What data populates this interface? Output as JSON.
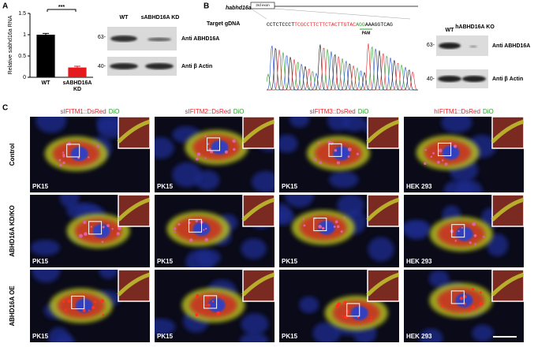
{
  "chart_data": {
    "type": "bar",
    "panel": "A",
    "y_label": "Relative sabhd16a RNA",
    "categories": [
      "WT",
      "sABHD16A KD"
    ],
    "values": [
      1.0,
      0.23
    ],
    "errors": [
      0.03,
      0.03
    ],
    "colors": [
      "#000000",
      "#e41a1c"
    ],
    "ylim": [
      0,
      1.5
    ],
    "yticks": [
      0,
      0.5,
      1,
      1.5
    ],
    "significance": "***"
  },
  "blot_a": {
    "lanes": [
      "WT",
      "sABHD16A KD"
    ],
    "markers": [
      "63-",
      "40-"
    ],
    "antibodies": [
      "Anti ABHD16A",
      "Anti β Actin"
    ]
  },
  "panel_b": {
    "label": "B",
    "gene": "habhd16a",
    "exon": "3rd exon",
    "target_label": "Target gDNA",
    "sequence": [
      "CCTCTCCCT",
      "TCGCCTTCTTCTACTTGTAC",
      "AGG",
      "AAAGGTCAG"
    ],
    "pam": "PAM",
    "blot": {
      "lanes": [
        "WT",
        "hABHD16A KO"
      ],
      "markers": [
        "63-",
        "40-"
      ],
      "antibodies": [
        "Anti ABHD16A",
        "Anti β Actin"
      ]
    }
  },
  "panel_c": {
    "label": "C",
    "columns": [
      {
        "construct": "sIFITM1::DsRed",
        "dye": "DiO"
      },
      {
        "construct": "sIFITM2::DsRed",
        "dye": "DiO"
      },
      {
        "construct": "sIFITM3::DsRed",
        "dye": "DiO"
      },
      {
        "construct": "hIFITM1::DsRed",
        "dye": "DiO"
      }
    ],
    "rows": [
      "Control",
      "ABHD16A KD/KO",
      "ABHD16A OE"
    ],
    "cell_lines": [
      [
        "PK15",
        "PK15",
        "PK15",
        "HEK 293"
      ],
      [
        "PK15",
        "PK15",
        "PK15",
        "HEK 293"
      ],
      [
        "PK15",
        "PK15",
        "PK15",
        "HEK 293"
      ]
    ]
  }
}
